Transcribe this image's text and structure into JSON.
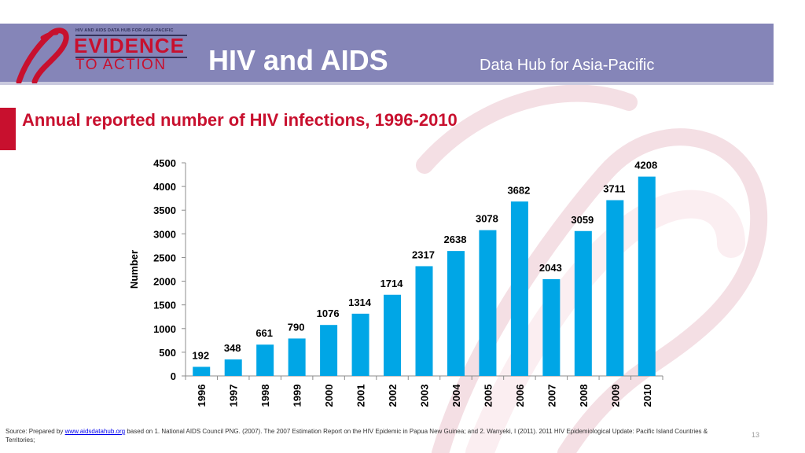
{
  "header": {
    "logo_top_text": "HIV AND AIDS DATA HUB FOR ASIA-PACIFIC",
    "logo_evidence": "EVIDENCE",
    "logo_to_action": "TO ACTION",
    "title": "HIV and AIDS",
    "subtitle": "Data Hub for Asia-Pacific"
  },
  "slide": {
    "title": "Annual reported number of  HIV infections, 1996-2010",
    "page_number": "13"
  },
  "footer": {
    "prefix": "Source: Prepared by ",
    "link_text": "www.aidsdatahub.org",
    "suffix": "  based on 1. National AIDS Council PNG. (2007). The 2007 Estimation Report on the HIV Epidemic in Papua New Guinea; and 2. Wanyeki, I (2011). 2011 HIV Epidemiological Update: Pacific Island Countries & Territories;"
  },
  "colors": {
    "header_band": "#8585b8",
    "accent_red": "#c8102e",
    "bar": "#00a6e6"
  },
  "chart_data": {
    "type": "bar",
    "title": "Annual reported number of  HIV infections, 1996-2010",
    "xlabel": "",
    "ylabel": "Number",
    "categories": [
      "1996",
      "1997",
      "1998",
      "1999",
      "2000",
      "2001",
      "2002",
      "2003",
      "2004",
      "2005",
      "2006",
      "2007",
      "2008",
      "2009",
      "2010"
    ],
    "values": [
      192,
      348,
      661,
      790,
      1076,
      1314,
      1714,
      2317,
      2638,
      3078,
      3682,
      2043,
      3059,
      3711,
      4208
    ],
    "ylim": [
      0,
      4500
    ],
    "yticks": [
      0,
      500,
      1000,
      1500,
      2000,
      2500,
      3000,
      3500,
      4000,
      4500
    ],
    "grid": false,
    "legend": "none"
  }
}
